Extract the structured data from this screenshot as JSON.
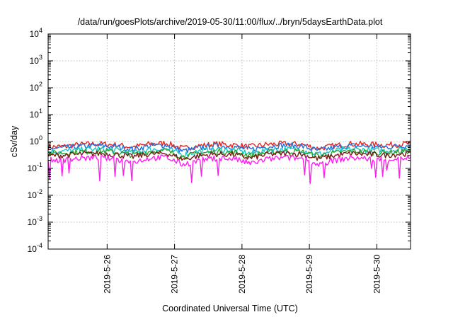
{
  "chart_data": {
    "type": "line",
    "title": "/data/run/goesPlots/archive/2019-05-30/11:00/flux/../bryn/5daysEarthData.plot",
    "xlabel": "Coordinated Universal Time (UTC)",
    "ylabel": "cSv/day",
    "yscale": "log",
    "ylim": [
      0.0001,
      10000
    ],
    "xlim": [
      "2019-05-25 03:00",
      "2019-05-30 12:00"
    ],
    "grid": true,
    "legend": "none",
    "y_ticks": [
      {
        "value": 10000,
        "base": "10",
        "exp": "4"
      },
      {
        "value": 1000,
        "base": "10",
        "exp": "3"
      },
      {
        "value": 100,
        "base": "10",
        "exp": "2"
      },
      {
        "value": 10,
        "base": "10",
        "exp": "1"
      },
      {
        "value": 1,
        "base": "10",
        "exp": "0"
      },
      {
        "value": 0.1,
        "base": "10",
        "exp": "-1"
      },
      {
        "value": 0.01,
        "base": "10",
        "exp": "-2"
      },
      {
        "value": 0.001,
        "base": "10",
        "exp": "-3"
      },
      {
        "value": 0.0001,
        "base": "10",
        "exp": "-4"
      }
    ],
    "x_ticks": [
      {
        "value": "2019-05-26 00:00",
        "label": "2019-5-26"
      },
      {
        "value": "2019-05-27 00:00",
        "label": "2019-5-27"
      },
      {
        "value": "2019-05-28 00:00",
        "label": "2019-5-28"
      },
      {
        "value": "2019-05-29 00:00",
        "label": "2019-5-29"
      },
      {
        "value": "2019-05-30 00:00",
        "label": "2019-5-30"
      }
    ],
    "series": [
      {
        "color": "#e8221c",
        "values": [
          [
            "2019-05-25 03:00",
            0.62
          ],
          [
            "2019-05-25 09:00",
            0.66
          ],
          [
            "2019-05-25 15:00",
            0.78
          ],
          [
            "2019-05-25 21:00",
            0.82
          ],
          [
            "2019-05-26 03:00",
            0.75
          ],
          [
            "2019-05-26 09:00",
            0.62
          ],
          [
            "2019-05-26 15:00",
            0.8
          ],
          [
            "2019-05-26 21:00",
            0.88
          ],
          [
            "2019-05-27 03:00",
            0.55
          ],
          [
            "2019-05-27 09:00",
            0.7
          ],
          [
            "2019-05-27 15:00",
            0.8
          ],
          [
            "2019-05-27 21:00",
            0.74
          ],
          [
            "2019-05-28 03:00",
            0.64
          ],
          [
            "2019-05-28 09:00",
            0.78
          ],
          [
            "2019-05-28 15:00",
            0.82
          ],
          [
            "2019-05-28 21:00",
            0.8
          ],
          [
            "2019-05-29 03:00",
            0.55
          ],
          [
            "2019-05-29 09:00",
            0.7
          ],
          [
            "2019-05-29 15:00",
            0.82
          ],
          [
            "2019-05-29 21:00",
            0.78
          ],
          [
            "2019-05-30 03:00",
            0.74
          ],
          [
            "2019-05-30 09:00",
            0.8
          ],
          [
            "2019-05-30 12:00",
            0.84
          ]
        ]
      },
      {
        "color": "#1f6fe0",
        "values": [
          [
            "2019-05-25 03:00",
            0.55
          ],
          [
            "2019-05-25 09:00",
            0.58
          ],
          [
            "2019-05-25 15:00",
            0.66
          ],
          [
            "2019-05-25 21:00",
            0.7
          ],
          [
            "2019-05-26 03:00",
            0.64
          ],
          [
            "2019-05-26 09:00",
            0.52
          ],
          [
            "2019-05-26 15:00",
            0.68
          ],
          [
            "2019-05-26 21:00",
            0.74
          ],
          [
            "2019-05-27 03:00",
            0.44
          ],
          [
            "2019-05-27 09:00",
            0.58
          ],
          [
            "2019-05-27 15:00",
            0.68
          ],
          [
            "2019-05-27 21:00",
            0.64
          ],
          [
            "2019-05-28 03:00",
            0.5
          ],
          [
            "2019-05-28 09:00",
            0.66
          ],
          [
            "2019-05-28 15:00",
            0.72
          ],
          [
            "2019-05-28 21:00",
            0.68
          ],
          [
            "2019-05-29 03:00",
            0.46
          ],
          [
            "2019-05-29 09:00",
            0.6
          ],
          [
            "2019-05-29 15:00",
            0.7
          ],
          [
            "2019-05-29 21:00",
            0.66
          ],
          [
            "2019-05-30 03:00",
            0.62
          ],
          [
            "2019-05-30 09:00",
            0.7
          ],
          [
            "2019-05-30 12:00",
            0.72
          ]
        ]
      },
      {
        "color": "#18c8c8",
        "values": [
          [
            "2019-05-25 03:00",
            0.42
          ],
          [
            "2019-05-25 09:00",
            0.44
          ],
          [
            "2019-05-25 15:00",
            0.5
          ],
          [
            "2019-05-25 21:00",
            0.52
          ],
          [
            "2019-05-26 03:00",
            0.48
          ],
          [
            "2019-05-26 09:00",
            0.38
          ],
          [
            "2019-05-26 15:00",
            0.5
          ],
          [
            "2019-05-26 21:00",
            0.54
          ],
          [
            "2019-05-27 03:00",
            0.32
          ],
          [
            "2019-05-27 09:00",
            0.44
          ],
          [
            "2019-05-27 15:00",
            0.5
          ],
          [
            "2019-05-27 21:00",
            0.48
          ],
          [
            "2019-05-28 03:00",
            0.36
          ],
          [
            "2019-05-28 09:00",
            0.48
          ],
          [
            "2019-05-28 15:00",
            0.52
          ],
          [
            "2019-05-28 21:00",
            0.5
          ],
          [
            "2019-05-29 03:00",
            0.34
          ],
          [
            "2019-05-29 09:00",
            0.44
          ],
          [
            "2019-05-29 15:00",
            0.52
          ],
          [
            "2019-05-29 21:00",
            0.48
          ],
          [
            "2019-05-30 03:00",
            0.46
          ],
          [
            "2019-05-30 09:00",
            0.52
          ],
          [
            "2019-05-30 12:00",
            0.54
          ]
        ]
      },
      {
        "color": "#2fa02c",
        "values": [
          [
            "2019-05-25 03:00",
            0.36
          ],
          [
            "2019-05-25 09:00",
            0.38
          ],
          [
            "2019-05-25 15:00",
            0.42
          ],
          [
            "2019-05-25 21:00",
            0.44
          ],
          [
            "2019-05-26 03:00",
            0.4
          ],
          [
            "2019-05-26 09:00",
            0.32
          ],
          [
            "2019-05-26 15:00",
            0.42
          ],
          [
            "2019-05-26 21:00",
            0.45
          ],
          [
            "2019-05-27 03:00",
            0.27
          ],
          [
            "2019-05-27 09:00",
            0.37
          ],
          [
            "2019-05-27 15:00",
            0.42
          ],
          [
            "2019-05-27 21:00",
            0.4
          ],
          [
            "2019-05-28 03:00",
            0.3
          ],
          [
            "2019-05-28 09:00",
            0.4
          ],
          [
            "2019-05-28 15:00",
            0.44
          ],
          [
            "2019-05-28 21:00",
            0.42
          ],
          [
            "2019-05-29 03:00",
            0.29
          ],
          [
            "2019-05-29 09:00",
            0.37
          ],
          [
            "2019-05-29 15:00",
            0.44
          ],
          [
            "2019-05-29 21:00",
            0.4
          ],
          [
            "2019-05-30 03:00",
            0.38
          ],
          [
            "2019-05-30 09:00",
            0.43
          ],
          [
            "2019-05-30 12:00",
            0.45
          ]
        ]
      },
      {
        "color": "#7a1a1a",
        "values": [
          [
            "2019-05-25 03:00",
            0.3
          ],
          [
            "2019-05-25 09:00",
            0.31
          ],
          [
            "2019-05-25 15:00",
            0.34
          ],
          [
            "2019-05-25 21:00",
            0.36
          ],
          [
            "2019-05-26 03:00",
            0.33
          ],
          [
            "2019-05-26 09:00",
            0.27
          ],
          [
            "2019-05-26 15:00",
            0.34
          ],
          [
            "2019-05-26 21:00",
            0.37
          ],
          [
            "2019-05-27 03:00",
            0.22
          ],
          [
            "2019-05-27 09:00",
            0.3
          ],
          [
            "2019-05-27 15:00",
            0.34
          ],
          [
            "2019-05-27 21:00",
            0.33
          ],
          [
            "2019-05-28 03:00",
            0.24
          ],
          [
            "2019-05-28 09:00",
            0.33
          ],
          [
            "2019-05-28 15:00",
            0.36
          ],
          [
            "2019-05-28 21:00",
            0.34
          ],
          [
            "2019-05-29 03:00",
            0.23
          ],
          [
            "2019-05-29 09:00",
            0.3
          ],
          [
            "2019-05-29 15:00",
            0.36
          ],
          [
            "2019-05-29 21:00",
            0.33
          ],
          [
            "2019-05-30 03:00",
            0.31
          ],
          [
            "2019-05-30 09:00",
            0.35
          ],
          [
            "2019-05-30 12:00",
            0.37
          ]
        ]
      },
      {
        "color": "#ff1ef0",
        "values": [
          [
            "2019-05-25 03:00",
            0.2
          ],
          [
            "2019-05-25 09:00",
            0.21
          ],
          [
            "2019-05-25 15:00",
            0.24
          ],
          [
            "2019-05-25 21:00",
            0.25
          ],
          [
            "2019-05-26 03:00",
            0.22
          ],
          [
            "2019-05-26 09:00",
            0.17
          ],
          [
            "2019-05-26 15:00",
            0.24
          ],
          [
            "2019-05-26 21:00",
            0.26
          ],
          [
            "2019-05-27 03:00",
            0.14
          ],
          [
            "2019-05-27 09:00",
            0.2
          ],
          [
            "2019-05-27 15:00",
            0.24
          ],
          [
            "2019-05-27 21:00",
            0.23
          ],
          [
            "2019-05-28 03:00",
            0.15
          ],
          [
            "2019-05-28 09:00",
            0.22
          ],
          [
            "2019-05-28 15:00",
            0.25
          ],
          [
            "2019-05-28 21:00",
            0.24
          ],
          [
            "2019-05-29 03:00",
            0.14
          ],
          [
            "2019-05-29 09:00",
            0.2
          ],
          [
            "2019-05-29 15:00",
            0.25
          ],
          [
            "2019-05-29 21:00",
            0.23
          ],
          [
            "2019-05-30 03:00",
            0.21
          ],
          [
            "2019-05-30 09:00",
            0.24
          ],
          [
            "2019-05-30 12:00",
            0.26
          ]
        ]
      }
    ]
  }
}
